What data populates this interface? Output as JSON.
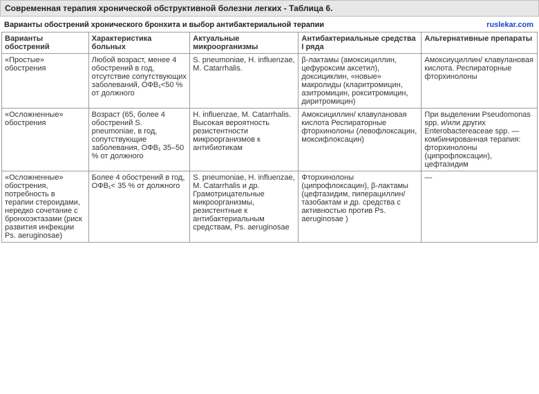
{
  "title": "Современная терапия хронической обструктивной болезни легких - Таблица 6.",
  "subtitle": "Варианты обострений хронического бронхита и выбор антибактериальной терапии",
  "site": "ruslekar.com",
  "table": {
    "columns": [
      "Варианты обострений",
      "Характеристика больных",
      "Актуальные микроорганизмы",
      "Антибактериальные средства I ряда",
      "Альтернативные препараты"
    ],
    "rows": [
      [
        "«Простые» обострения",
        "Любой возраст, менее 4 обострений в год, отсутствие сопутствующих заболеваний, ОФВ₁<50 % от должного",
        "S. pneumoniae, H. influenzae, M. Catarrhalis.",
        "β-лактамы (амоксициллин, цефуроксим аксетил), доксициклин, «новые» макролиды (кларитромицин, азитромицин, рокситромицин, диритромицин)",
        "Амоксиуциллин/ клавулановая кислота. Респираторные фторхинолоны"
      ],
      [
        "«Осложненные» обострения",
        "Возраст (65, более 4 обострений S. pneumoniae, в год, сопутствующие заболевания, ОФВ₁ 35–50 % от должного",
        "H. influenzae, M. Catarrhalis. Высокая вероятность резистентности микроорганизмов к антибиотикам",
        "Амоксициллин/ клавулановая кислота Респираторные фторхинолоны (левофлоксацин, моксифлоксацин)",
        "При выделении Pseudomonas spp. и/или других Enterobactereaceae spp. — комбинированная терапия: фторхинолоны (ципрофлоксацин), цефтазидим"
      ],
      [
        "«Осложненные» обострения, потребность в терапии стероидами, нередко сочетание с бронхоэктазами (риск развития инфекции Ps. aeruginosae)",
        "Более 4 обострений в год, ОФВ₁< 35 % от должного",
        "S. pneumoniae, H. influenzae, M. Catarrhalis и др. Грамотрицательные микроорганизмы, резистентные к антибактериальным средствам, Ps. aeruginosae",
        "Фторхинолоны (ципрофлоксацин), β-лактамы (цефтазидим, пиперациллин/ тазобактам и др. средства с активностью против Ps. aeruginosae )",
        "—"
      ]
    ]
  }
}
